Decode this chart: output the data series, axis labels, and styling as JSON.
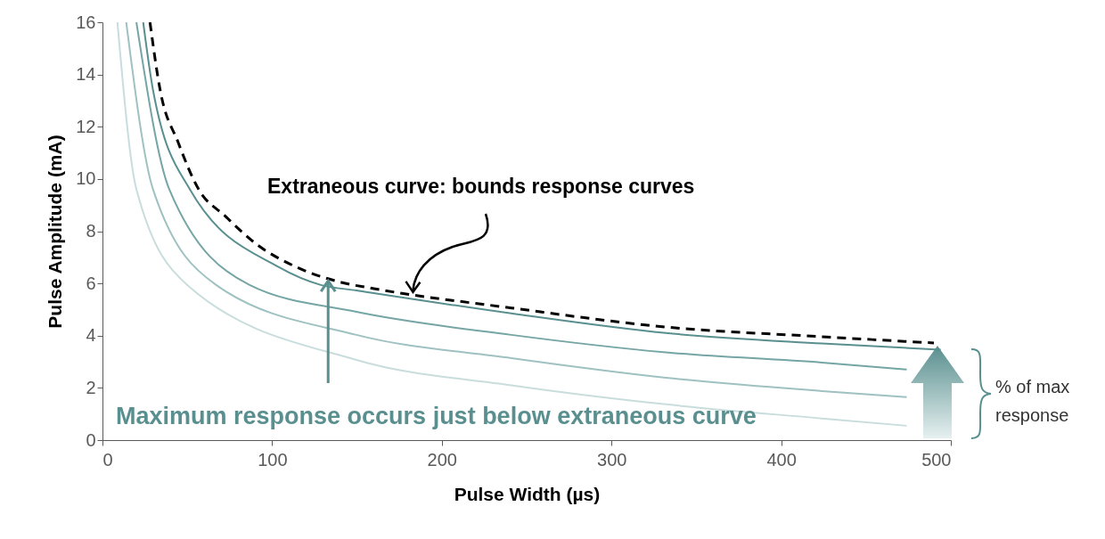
{
  "chart_data": {
    "type": "line",
    "xlabel": "Pulse Width (µs)",
    "ylabel": "Pulse Amplitude (mA)",
    "xlim": [
      0,
      500
    ],
    "xticks": [
      0,
      100,
      200,
      300,
      400,
      500
    ],
    "ylim": [
      0,
      16
    ],
    "yticks": [
      0,
      2,
      4,
      6,
      8,
      10,
      12,
      14,
      16
    ],
    "annotations": [
      {
        "text": "Extraneous curve: bounds response curves",
        "x": 183,
        "y": 5.6
      },
      {
        "text": "Maximum response occurs just below extraneous curve",
        "x": 133,
        "y": 6.1
      },
      "% of max response"
    ],
    "series": [
      {
        "color": "#000000",
        "line_style": "dashed",
        "x": [
          28,
          34,
          44.6,
          56.7,
          72.5,
          90,
          114.5,
          140.8,
          160,
          241,
          332,
          424,
          490
        ],
        "values": [
          16,
          13.4,
          11.4,
          9.6,
          8.57,
          7.54,
          6.62,
          6.04,
          5.8,
          5.06,
          4.33,
          3.96,
          3.72
        ]
      },
      {
        "color": "#5a8f8f",
        "line_style": "solid",
        "x": [
          24,
          29.8,
          51.5,
          104,
          128.7,
          149.7,
          241,
          332,
          424,
          494
        ],
        "values": [
          16,
          13.4,
          9.6,
          6.62,
          5.94,
          5.73,
          4.85,
          4.1,
          3.7,
          3.46
        ]
      },
      {
        "color": "#76a5a5",
        "line_style": "solid",
        "x": [
          20,
          39.4,
          86.7,
          149.7,
          241,
          332,
          424,
          474
        ],
        "values": [
          16,
          9.6,
          5.94,
          4.91,
          4.03,
          3.36,
          2.97,
          2.7
        ]
      },
      {
        "color": "#9fc1c1",
        "line_style": "solid",
        "x": [
          14,
          29.8,
          67,
          149.7,
          241,
          332,
          424,
          474
        ],
        "values": [
          16,
          9.6,
          5.94,
          4.03,
          3.14,
          2.39,
          1.88,
          1.65
        ]
      },
      {
        "color": "#c9dddd",
        "line_style": "solid",
        "x": [
          8.8,
          20,
          50,
          149.7,
          241,
          332,
          424,
          474
        ],
        "values": [
          16,
          9.6,
          5.94,
          3.07,
          2.1,
          1.37,
          0.83,
          0.55
        ]
      }
    ]
  }
}
